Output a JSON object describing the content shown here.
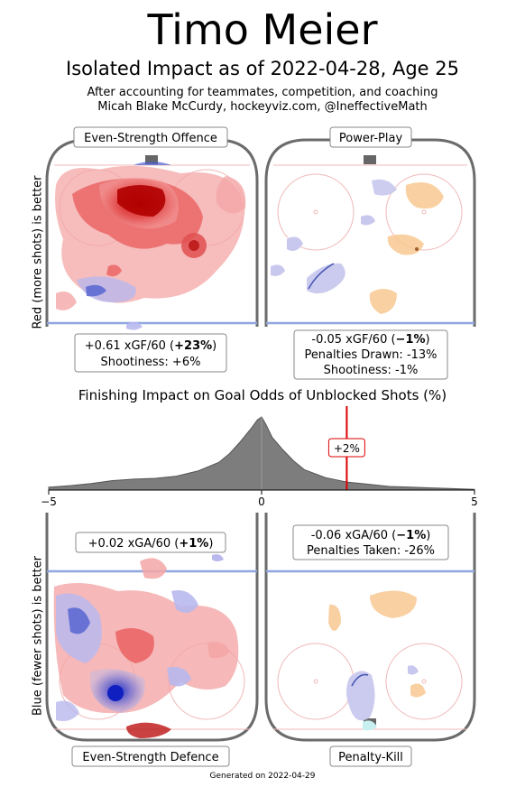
{
  "title": "Timo Meier",
  "subtitle": "Isolated Impact as of 2022-04-28, Age 25",
  "attribution_1": "After accounting for teammates, competition, and coaching",
  "attribution_2": "Micah Blake McCurdy, hockeyviz.com, @IneffectiveMath",
  "ylabel_top": "Red (more shots) is better",
  "ylabel_bottom": "Blue (fewer shots) is better",
  "panels": {
    "ev_offence": {
      "label": "Even-Strength Offence",
      "stat_prefix": "+0.61 xGF/60 (",
      "stat_bold": "+23%",
      "stat_suffix": ")",
      "line2": "Shootiness: +6%"
    },
    "power_play": {
      "label": "Power-Play",
      "stat_prefix": "-0.05 xGF/60 (",
      "stat_bold": "−1%",
      "stat_suffix": ")",
      "line2": "Penalties Drawn: -13%",
      "line3": "Shootiness: -1%"
    },
    "ev_defence": {
      "label": "Even-Strength Defence",
      "stat_prefix": "+0.02 xGA/60 (",
      "stat_bold": "+1%",
      "stat_suffix": ")"
    },
    "penalty_kill": {
      "label": "Penalty-Kill",
      "stat_prefix": "-0.06 xGA/60 (",
      "stat_bold": "−1%",
      "stat_suffix": ")",
      "line2": "Penalties Taken: -26%"
    }
  },
  "chart_data": {
    "type": "area",
    "title": "Finishing Impact on Goal Odds of Unblocked Shots (%)",
    "x_range": [
      -5,
      5
    ],
    "x_ticks": [
      "−5",
      "0",
      "5"
    ],
    "distribution": {
      "x": [
        -5,
        -4.5,
        -4,
        -3.5,
        -3,
        -2.5,
        -2,
        -1.5,
        -1,
        -0.75,
        -0.5,
        -0.25,
        -0.1,
        0,
        0.1,
        0.25,
        0.5,
        0.75,
        1,
        1.5,
        2,
        2.5,
        3,
        3.5,
        4,
        4.5,
        5
      ],
      "density": [
        0.04,
        0.06,
        0.09,
        0.13,
        0.15,
        0.16,
        0.19,
        0.26,
        0.38,
        0.5,
        0.66,
        0.84,
        0.96,
        1.0,
        0.9,
        0.72,
        0.55,
        0.4,
        0.28,
        0.17,
        0.11,
        0.08,
        0.05,
        0.04,
        0.03,
        0.02,
        0.01
      ]
    },
    "marker": {
      "value": 2,
      "label": "+2%",
      "color": "#dd0000"
    },
    "colors": {
      "fill": "#7d7d7d",
      "offence": "#d62020",
      "defence": "#2830c8",
      "pp_plus": "#f5b070",
      "pp_minus": "#9090d0"
    }
  },
  "footer": "Generated on 2022-04-29"
}
